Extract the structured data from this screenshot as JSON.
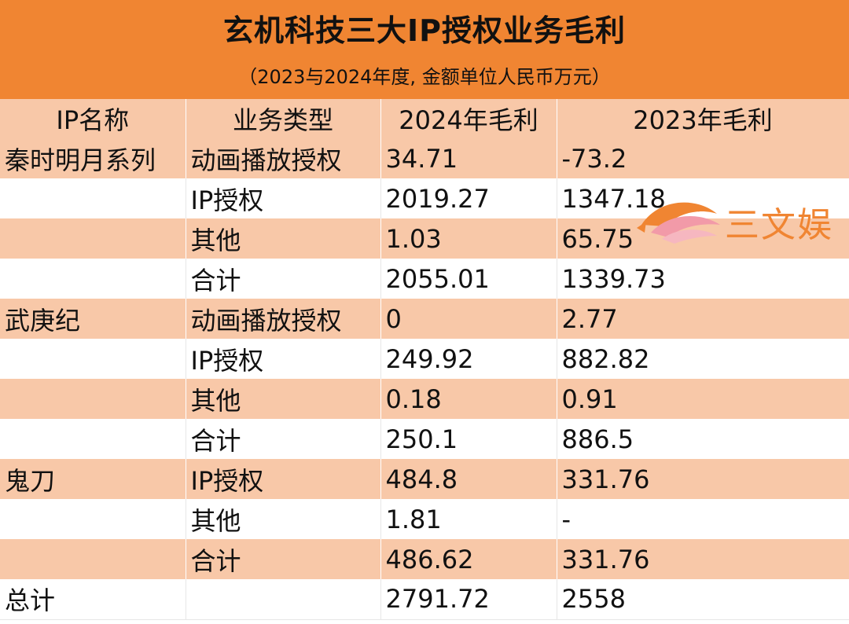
{
  "header": {
    "title": "玄机科技三大IP授权业务毛利",
    "subtitle": "（2023与2024年度, 金额单位人民币万元）"
  },
  "table": {
    "columns": [
      "IP名称",
      "业务类型",
      "2024年毛利",
      "2023年毛利"
    ],
    "rows": [
      [
        "秦时明月系列",
        "动画播放授权",
        "34.71",
        "-73.2"
      ],
      [
        "",
        "IP授权",
        "2019.27",
        "1347.18"
      ],
      [
        "",
        "其他",
        "1.03",
        "65.75"
      ],
      [
        "",
        "合计",
        "2055.01",
        "1339.73"
      ],
      [
        "武庚纪",
        "动画播放授权",
        "0",
        "2.77"
      ],
      [
        "",
        "IP授权",
        "249.92",
        "882.82"
      ],
      [
        "",
        "其他",
        "0.18",
        "0.91"
      ],
      [
        "",
        "合计",
        "250.1",
        "886.5"
      ],
      [
        "鬼刀",
        "IP授权",
        "484.8",
        "331.76"
      ],
      [
        "",
        "其他",
        "1.81",
        "-"
      ],
      [
        "",
        "合计",
        "486.62",
        "331.76"
      ],
      [
        "总计",
        "",
        "2791.72",
        "2558"
      ]
    ]
  },
  "watermark": {
    "text": "三文娱",
    "icon": "fish-logo-icon",
    "color": "#f08532"
  },
  "colors": {
    "header_bg": "#f08532",
    "band_bg": "#f8c8a8"
  }
}
